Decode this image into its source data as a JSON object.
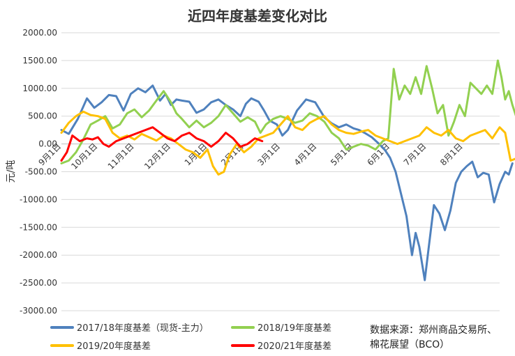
{
  "chart_data": {
    "type": "line",
    "title": "近四年度基差变化对比",
    "ylabel": "元/吨",
    "ylim": [
      -3000,
      2000
    ],
    "yticks": [
      2000,
      1500,
      1000,
      500,
      0,
      -500,
      -1000,
      -1500,
      -2000,
      -2500,
      -3000
    ],
    "ytick_labels": [
      "2000.00",
      "1500.00",
      "1000.00",
      "500.00",
      "0.00",
      "-500.00",
      "-1000.00",
      "-1500.00",
      "-2000.00",
      "-2500.00",
      "-3000.00"
    ],
    "xlim": [
      0,
      12
    ],
    "xticks": [
      0,
      1,
      2,
      3,
      4,
      5,
      6,
      7,
      8,
      9,
      10,
      11
    ],
    "xtick_labels": [
      "9月1日",
      "10月1日",
      "11月1日",
      "12月1日",
      "1月1日",
      "2月1日",
      "3月1日",
      "4月1日",
      "5月1日",
      "6月1日",
      "7月1日",
      "8月1日"
    ],
    "grid": "horizontal",
    "legend_position": "bottom",
    "source_note": "数据来源：郑州商品交易所、\n棉花展望（BCO）",
    "series": [
      {
        "name": "2017/18年度基差（现货-主力）",
        "color": "#4f81bd",
        "points": [
          [
            0.0,
            250
          ],
          [
            0.2,
            180
          ],
          [
            0.45,
            450
          ],
          [
            0.7,
            820
          ],
          [
            0.9,
            650
          ],
          [
            1.1,
            750
          ],
          [
            1.3,
            880
          ],
          [
            1.5,
            860
          ],
          [
            1.7,
            600
          ],
          [
            1.9,
            900
          ],
          [
            2.1,
            1000
          ],
          [
            2.3,
            930
          ],
          [
            2.5,
            1050
          ],
          [
            2.7,
            780
          ],
          [
            2.85,
            900
          ],
          [
            3.0,
            700
          ],
          [
            3.15,
            800
          ],
          [
            3.3,
            780
          ],
          [
            3.5,
            760
          ],
          [
            3.7,
            560
          ],
          [
            3.9,
            620
          ],
          [
            4.1,
            750
          ],
          [
            4.3,
            800
          ],
          [
            4.5,
            700
          ],
          [
            4.7,
            620
          ],
          [
            4.9,
            500
          ],
          [
            5.05,
            720
          ],
          [
            5.2,
            820
          ],
          [
            5.4,
            760
          ],
          [
            5.55,
            600
          ],
          [
            5.7,
            420
          ],
          [
            5.9,
            350
          ],
          [
            6.05,
            150
          ],
          [
            6.2,
            250
          ],
          [
            6.45,
            600
          ],
          [
            6.7,
            800
          ],
          [
            6.95,
            750
          ],
          [
            7.2,
            480
          ],
          [
            7.4,
            370
          ],
          [
            7.6,
            300
          ],
          [
            7.8,
            350
          ],
          [
            8.0,
            280
          ],
          [
            8.15,
            250
          ],
          [
            8.3,
            200
          ],
          [
            8.5,
            120
          ],
          [
            8.7,
            0
          ],
          [
            8.85,
            -100
          ],
          [
            9.0,
            -250
          ],
          [
            9.15,
            -500
          ],
          [
            9.3,
            -900
          ],
          [
            9.45,
            -1300
          ],
          [
            9.6,
            -2000
          ],
          [
            9.7,
            -1600
          ],
          [
            9.8,
            -1850
          ],
          [
            9.95,
            -2450
          ],
          [
            10.05,
            -1900
          ],
          [
            10.2,
            -1100
          ],
          [
            10.35,
            -1250
          ],
          [
            10.5,
            -1550
          ],
          [
            10.65,
            -1200
          ],
          [
            10.8,
            -700
          ],
          [
            10.95,
            -500
          ],
          [
            11.1,
            -400
          ],
          [
            11.25,
            -320
          ],
          [
            11.4,
            -600
          ],
          [
            11.55,
            -520
          ],
          [
            11.7,
            -550
          ],
          [
            11.85,
            -1050
          ],
          [
            12.0,
            -720
          ],
          [
            12.15,
            -500
          ],
          [
            12.25,
            -550
          ],
          [
            12.35,
            -350
          ]
        ]
      },
      {
        "name": "2018/19年度基差",
        "color": "#92d050",
        "points": [
          [
            0.0,
            -350
          ],
          [
            0.2,
            -300
          ],
          [
            0.4,
            -150
          ],
          [
            0.6,
            80
          ],
          [
            0.8,
            350
          ],
          [
            1.0,
            420
          ],
          [
            1.2,
            500
          ],
          [
            1.4,
            280
          ],
          [
            1.6,
            350
          ],
          [
            1.8,
            550
          ],
          [
            2.0,
            620
          ],
          [
            2.2,
            480
          ],
          [
            2.4,
            600
          ],
          [
            2.6,
            780
          ],
          [
            2.8,
            950
          ],
          [
            3.0,
            750
          ],
          [
            3.15,
            550
          ],
          [
            3.3,
            450
          ],
          [
            3.5,
            300
          ],
          [
            3.7,
            420
          ],
          [
            3.9,
            300
          ],
          [
            4.1,
            380
          ],
          [
            4.3,
            500
          ],
          [
            4.5,
            700
          ],
          [
            4.7,
            550
          ],
          [
            4.9,
            400
          ],
          [
            5.1,
            480
          ],
          [
            5.3,
            400
          ],
          [
            5.45,
            200
          ],
          [
            5.6,
            350
          ],
          [
            5.8,
            450
          ],
          [
            6.0,
            500
          ],
          [
            6.2,
            450
          ],
          [
            6.4,
            380
          ],
          [
            6.6,
            420
          ],
          [
            6.8,
            550
          ],
          [
            7.0,
            500
          ],
          [
            7.2,
            400
          ],
          [
            7.4,
            200
          ],
          [
            7.6,
            100
          ],
          [
            7.8,
            -100
          ],
          [
            8.0,
            -50
          ],
          [
            8.2,
            0
          ],
          [
            8.4,
            -30
          ],
          [
            8.6,
            -100
          ],
          [
            8.8,
            50
          ],
          [
            8.95,
            100
          ],
          [
            9.1,
            1350
          ],
          [
            9.25,
            800
          ],
          [
            9.4,
            1050
          ],
          [
            9.55,
            900
          ],
          [
            9.7,
            1200
          ],
          [
            9.85,
            900
          ],
          [
            10.0,
            1400
          ],
          [
            10.15,
            1000
          ],
          [
            10.3,
            550
          ],
          [
            10.45,
            700
          ],
          [
            10.6,
            150
          ],
          [
            10.75,
            400
          ],
          [
            10.9,
            700
          ],
          [
            11.05,
            500
          ],
          [
            11.2,
            1100
          ],
          [
            11.35,
            1000
          ],
          [
            11.5,
            900
          ],
          [
            11.65,
            1050
          ],
          [
            11.8,
            900
          ],
          [
            11.95,
            1500
          ],
          [
            12.05,
            1200
          ],
          [
            12.15,
            800
          ],
          [
            12.25,
            950
          ],
          [
            12.35,
            700
          ],
          [
            12.45,
            500
          ]
        ]
      },
      {
        "name": "2019/20年度基差",
        "color": "#ffc000",
        "points": [
          [
            0.0,
            200
          ],
          [
            0.2,
            380
          ],
          [
            0.4,
            500
          ],
          [
            0.6,
            580
          ],
          [
            0.8,
            520
          ],
          [
            1.0,
            500
          ],
          [
            1.2,
            450
          ],
          [
            1.4,
            200
          ],
          [
            1.6,
            100
          ],
          [
            1.8,
            150
          ],
          [
            2.0,
            80
          ],
          [
            2.2,
            180
          ],
          [
            2.4,
            120
          ],
          [
            2.6,
            60
          ],
          [
            2.8,
            150
          ],
          [
            3.0,
            100
          ],
          [
            3.2,
            0
          ],
          [
            3.4,
            -100
          ],
          [
            3.6,
            -150
          ],
          [
            3.8,
            -250
          ],
          [
            4.0,
            -100
          ],
          [
            4.15,
            -400
          ],
          [
            4.3,
            -550
          ],
          [
            4.45,
            -500
          ],
          [
            4.6,
            -200
          ],
          [
            4.8,
            0
          ],
          [
            5.0,
            -150
          ],
          [
            5.2,
            -50
          ],
          [
            5.4,
            100
          ],
          [
            5.6,
            150
          ],
          [
            5.8,
            200
          ],
          [
            6.0,
            350
          ],
          [
            6.2,
            500
          ],
          [
            6.4,
            300
          ],
          [
            6.6,
            250
          ],
          [
            6.8,
            380
          ],
          [
            7.0,
            450
          ],
          [
            7.2,
            500
          ],
          [
            7.4,
            350
          ],
          [
            7.6,
            250
          ],
          [
            7.8,
            200
          ],
          [
            8.0,
            180
          ],
          [
            8.2,
            220
          ],
          [
            8.4,
            250
          ],
          [
            8.6,
            150
          ],
          [
            8.8,
            100
          ],
          [
            9.0,
            50
          ],
          [
            9.2,
            0
          ],
          [
            9.4,
            50
          ],
          [
            9.6,
            100
          ],
          [
            9.8,
            150
          ],
          [
            10.0,
            300
          ],
          [
            10.2,
            200
          ],
          [
            10.4,
            150
          ],
          [
            10.6,
            250
          ],
          [
            10.8,
            100
          ],
          [
            11.0,
            50
          ],
          [
            11.2,
            150
          ],
          [
            11.4,
            200
          ],
          [
            11.6,
            250
          ],
          [
            11.8,
            100
          ],
          [
            12.0,
            300
          ],
          [
            12.15,
            200
          ],
          [
            12.3,
            -300
          ],
          [
            12.5,
            -250
          ],
          [
            12.7,
            -300
          ]
        ]
      },
      {
        "name": "2020/21年度基差",
        "color": "#ff0000",
        "points": [
          [
            0.0,
            -300
          ],
          [
            0.15,
            -150
          ],
          [
            0.3,
            150
          ],
          [
            0.5,
            50
          ],
          [
            0.7,
            100
          ],
          [
            0.85,
            80
          ],
          [
            1.0,
            120
          ],
          [
            1.15,
            0
          ],
          [
            1.3,
            -50
          ],
          [
            1.5,
            50
          ],
          [
            1.7,
            100
          ],
          [
            1.9,
            150
          ],
          [
            2.1,
            200
          ],
          [
            2.3,
            250
          ],
          [
            2.5,
            300
          ],
          [
            2.7,
            200
          ],
          [
            2.9,
            100
          ],
          [
            3.1,
            50
          ],
          [
            3.3,
            150
          ],
          [
            3.5,
            200
          ],
          [
            3.7,
            100
          ],
          [
            3.9,
            50
          ],
          [
            4.1,
            -50
          ],
          [
            4.3,
            50
          ],
          [
            4.5,
            200
          ],
          [
            4.7,
            100
          ],
          [
            4.9,
            -50
          ],
          [
            5.1,
            0
          ],
          [
            5.3,
            100
          ],
          [
            5.5,
            50
          ]
        ]
      }
    ]
  }
}
